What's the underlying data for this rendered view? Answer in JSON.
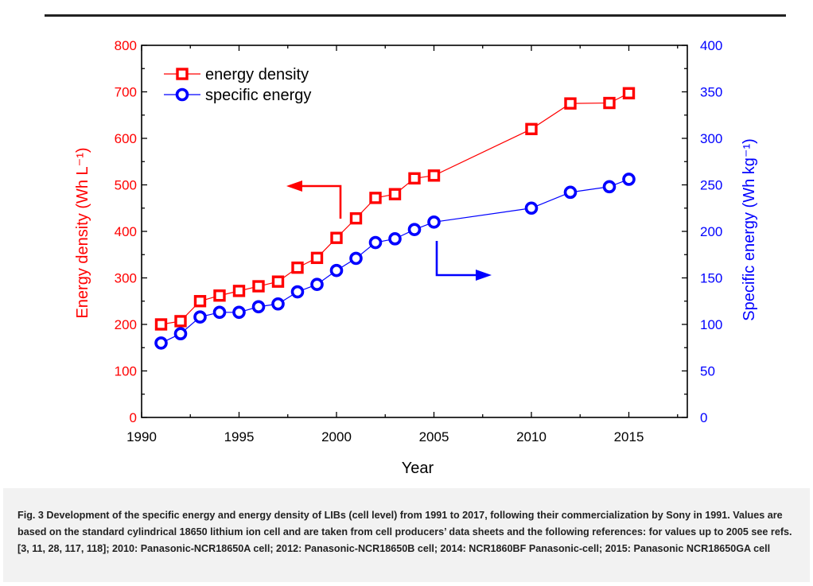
{
  "chart_data": {
    "type": "line",
    "xlabel": "Year",
    "ylabel_left": "Energy density (Wh L⁻¹)",
    "ylabel_right": "Specific energy (Wh kg⁻¹)",
    "xlim": [
      1990,
      2018
    ],
    "ylim_left": [
      0,
      800
    ],
    "ylim_right": [
      0,
      400
    ],
    "x_ticks": [
      1990,
      1995,
      2000,
      2005,
      2010,
      2015
    ],
    "y_left_ticks": [
      0,
      100,
      200,
      300,
      400,
      500,
      600,
      700,
      800
    ],
    "y_right_ticks": [
      0,
      50,
      100,
      150,
      200,
      250,
      300,
      350,
      400
    ],
    "legend_position": "top-left",
    "series": [
      {
        "name": "energy density",
        "axis": "left",
        "color": "#ff0000",
        "marker": "square",
        "x": [
          1991,
          1992,
          1993,
          1994,
          1995,
          1996,
          1997,
          1998,
          1999,
          2000,
          2001,
          2002,
          2003,
          2004,
          2005,
          2010,
          2012,
          2014,
          2015
        ],
        "values": [
          200,
          207,
          250,
          262,
          272,
          282,
          292,
          322,
          343,
          386,
          428,
          472,
          480,
          514,
          520,
          620,
          675,
          676,
          697
        ]
      },
      {
        "name": "specific energy",
        "axis": "right",
        "color": "#0000ff",
        "marker": "circle",
        "x": [
          1991,
          1992,
          1993,
          1994,
          1995,
          1996,
          1997,
          1998,
          1999,
          2000,
          2001,
          2002,
          2003,
          2004,
          2005,
          2010,
          2012,
          2014,
          2015
        ],
        "values": [
          80,
          90,
          108,
          113,
          113,
          119,
          122,
          135,
          143,
          158,
          171,
          188,
          192,
          202,
          210,
          225,
          242,
          248,
          256
        ]
      }
    ],
    "arrows": [
      {
        "series": "energy density",
        "direction": "left",
        "color": "#ff0000"
      },
      {
        "series": "specific energy",
        "direction": "right",
        "color": "#0000ff"
      }
    ]
  },
  "caption": {
    "text": "Fig. 3 Development of the specific energy and energy density of LIBs (cell level) from 1991 to 2017, following their commercialization by Sony in 1991. Values are based on the standard cylindrical 18650 lithium ion cell and are taken from cell producers’ data sheets and the following references: for values up to 2005 see refs. [3, 11, 28, 117, 118]; 2010: Panasonic-NCR18650A cell; 2012: Panasonic-NCR18650B cell; 2014: NCR1860BF Panasonic-cell; 2015: Panasonic NCR18650GA cell"
  }
}
